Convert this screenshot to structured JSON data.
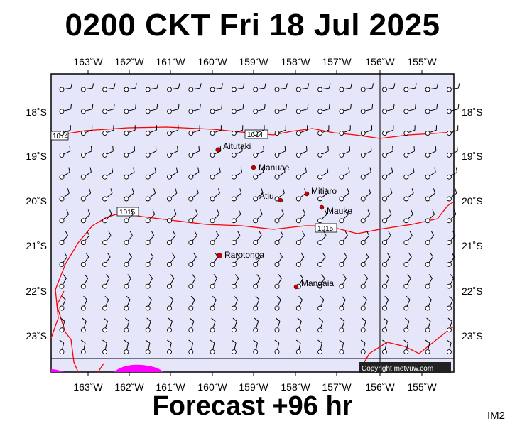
{
  "title": "0200 CKT Fri 18 Jul 2025",
  "footer": "Forecast +96 hr",
  "tag": "IM2",
  "copyright": "Copyright metvuw.com",
  "colors": {
    "ocean": "#e6e6fa",
    "isobar": "#ff0000",
    "land": "#ff00ff",
    "island": "#cc0000",
    "barb": "#000000"
  },
  "lon_labels": [
    "163˚W",
    "162˚W",
    "161˚W",
    "160˚W",
    "159˚W",
    "158˚W",
    "157˚W",
    "156˚W",
    "155˚W"
  ],
  "lat_labels": [
    "18˚S",
    "19˚S",
    "20˚S",
    "21˚S",
    "22˚S",
    "23˚S"
  ],
  "isobar_labels": [
    "1014",
    "1014",
    "1015",
    "1015"
  ],
  "places": [
    {
      "name": "Aitutaki"
    },
    {
      "name": "Manuae"
    },
    {
      "name": "Atiu"
    },
    {
      "name": "Mitiaro"
    },
    {
      "name": "Mauke"
    },
    {
      "name": "Rarotonga"
    },
    {
      "name": "Mangaia"
    }
  ]
}
